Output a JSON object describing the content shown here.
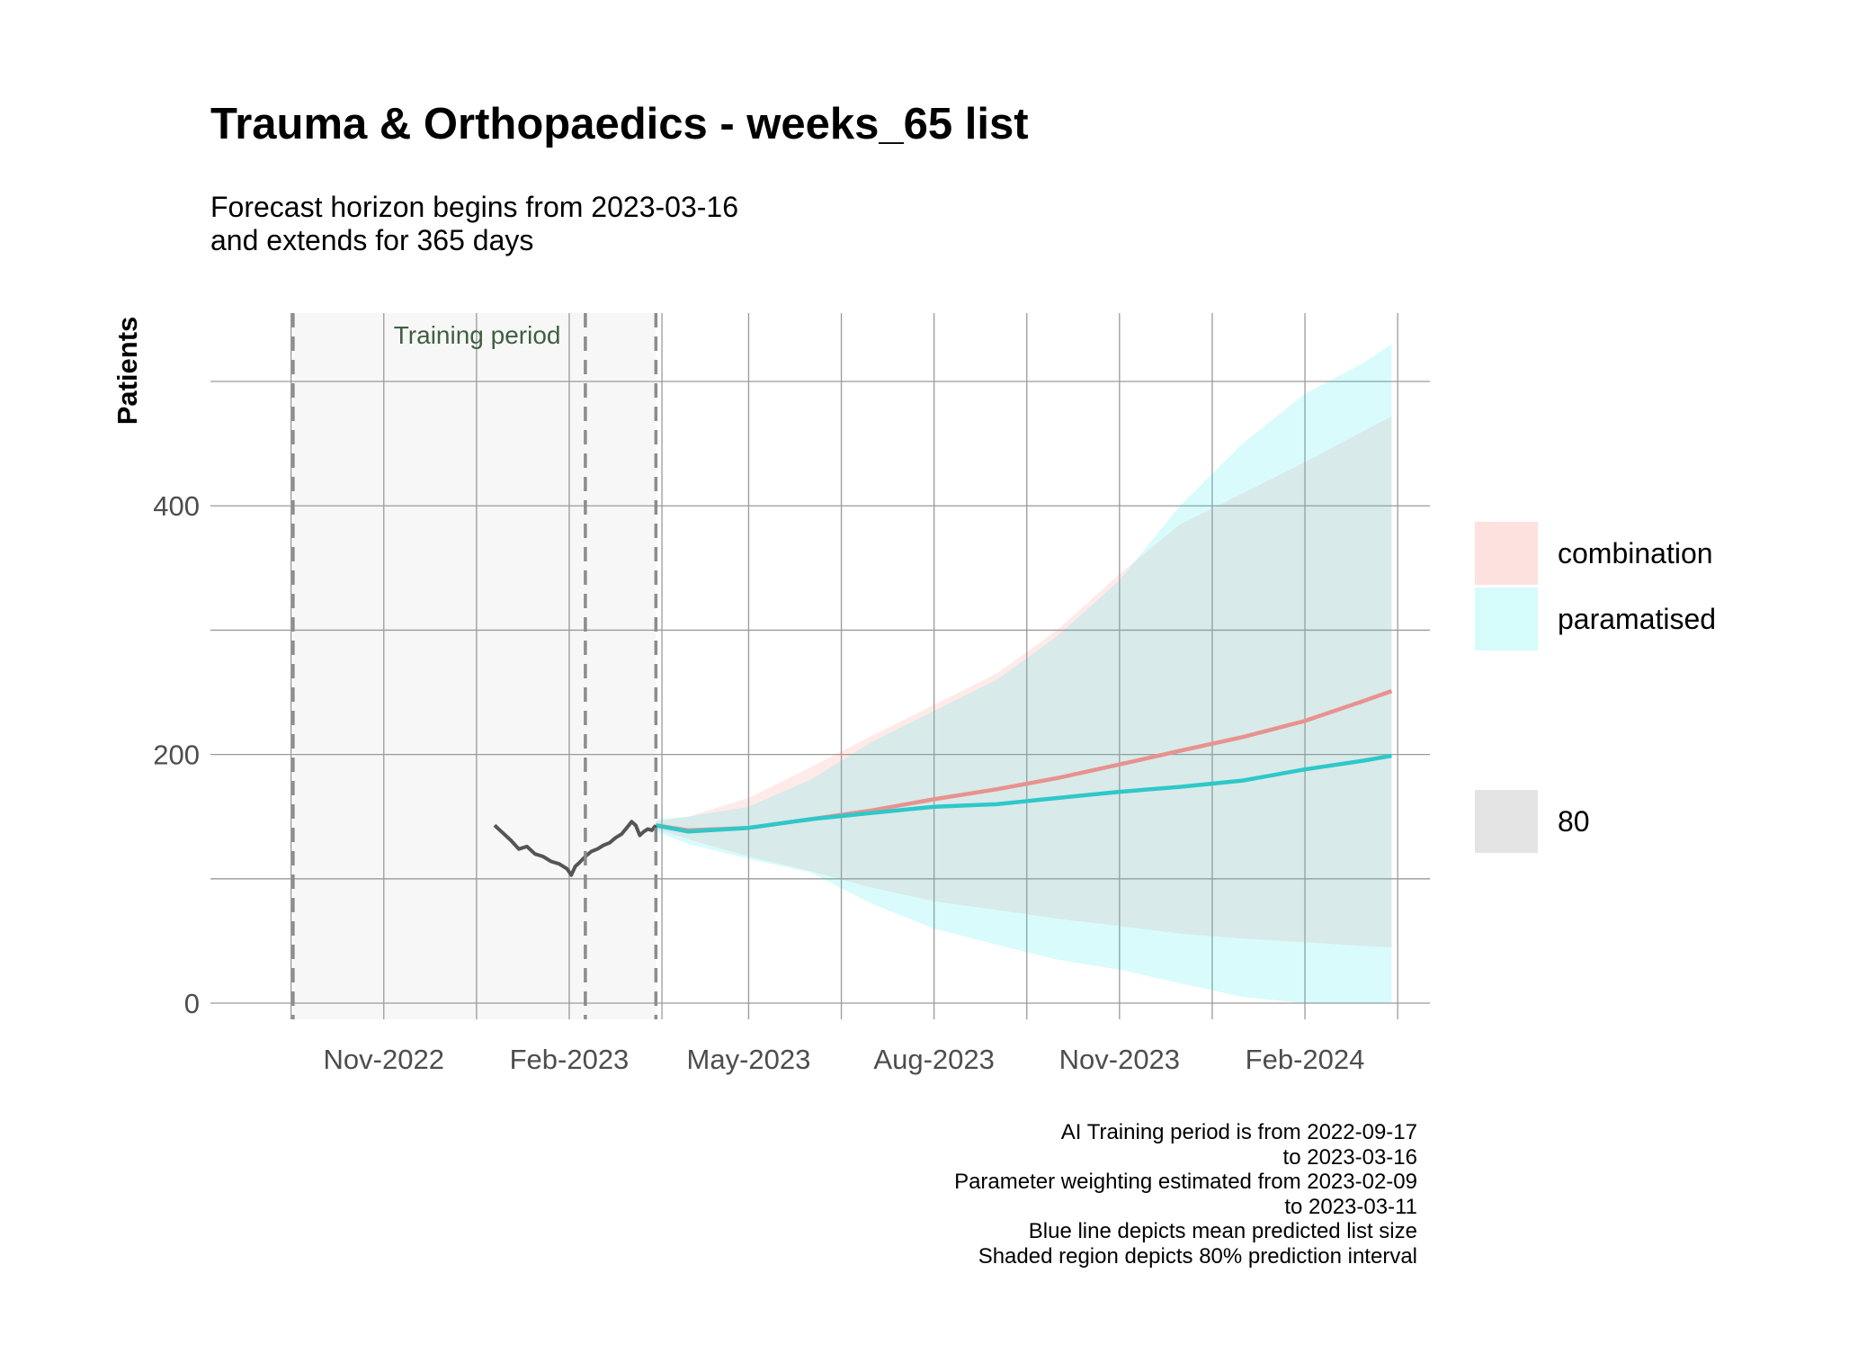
{
  "title": "Trauma & Orthopaedics - weeks_65 list",
  "subtitle": [
    "Forecast horizon begins from 2023-03-16",
    "and extends for 365 days"
  ],
  "caption": [
    "AI Training period is from 2022-09-17",
    "to 2023-03-16",
    "Parameter weighting estimated from 2023-02-09",
    "to 2023-03-11",
    "Blue line depicts mean predicted list size",
    "Shaded region depicts 80% prediction interval"
  ],
  "legend": {
    "series": [
      {
        "label": "combination",
        "color": "#F8766D"
      },
      {
        "label": "paramatised",
        "color": "#00E5E8"
      }
    ],
    "interval": {
      "label": "80",
      "color": "#d9d9d9"
    }
  },
  "colors": {
    "historic_line": "#555555",
    "combination_line": "#E8928F",
    "paramatised_line": "#2EC8C8",
    "training_shade": "#f7f7f7",
    "grid": "#9a9a9a",
    "vline": "#8c8c8c"
  },
  "chart_data": {
    "type": "line",
    "title": "Trauma & Orthopaedics - weeks_65 list",
    "ylabel": "Patients",
    "xlabel": "",
    "x_ticks": [
      "Nov-2022",
      "Feb-2023",
      "May-2023",
      "Aug-2023",
      "Nov-2023",
      "Feb-2024"
    ],
    "x_tick_dates": [
      "2022-11-01",
      "2023-02-01",
      "2023-05-01",
      "2023-08-01",
      "2023-11-01",
      "2024-02-01"
    ],
    "y_ticks": [
      0,
      200,
      400
    ],
    "y_tick_labels": [
      "0",
      "200",
      "400"
    ],
    "xlim": [
      "2022-08-07",
      "2024-04-03"
    ],
    "ylim": [
      -13,
      555
    ],
    "grid": true,
    "legend_position": "right",
    "annotation": "Training period",
    "training_period": [
      "2022-09-17",
      "2023-03-16"
    ],
    "reference_lines": [
      "2022-09-17",
      "2023-02-09",
      "2023-03-16"
    ],
    "historic": {
      "dates": [
        "2022-12-26",
        "2022-12-30",
        "2023-01-03",
        "2023-01-07",
        "2023-01-11",
        "2023-01-15",
        "2023-01-19",
        "2023-01-23",
        "2023-01-27",
        "2023-01-31",
        "2023-02-02",
        "2023-02-04",
        "2023-02-06",
        "2023-02-09",
        "2023-02-12",
        "2023-02-15",
        "2023-02-18",
        "2023-02-21",
        "2023-02-24",
        "2023-02-27",
        "2023-03-02",
        "2023-03-04",
        "2023-03-06",
        "2023-03-08",
        "2023-03-10",
        "2023-03-12",
        "2023-03-14",
        "2023-03-16"
      ],
      "values": [
        143,
        137,
        131,
        124,
        126,
        120,
        118,
        114,
        112,
        108,
        103,
        110,
        113,
        118,
        122,
        124,
        127,
        129,
        133,
        136,
        142,
        146,
        143,
        135,
        138,
        140,
        139,
        143
      ]
    },
    "series": [
      {
        "name": "combination",
        "dates": [
          "2023-03-16",
          "2023-04-01",
          "2023-05-01",
          "2023-06-01",
          "2023-07-01",
          "2023-08-01",
          "2023-09-01",
          "2023-10-01",
          "2023-11-01",
          "2023-12-01",
          "2024-01-01",
          "2024-02-01",
          "2024-03-01",
          "2024-03-15"
        ],
        "mean": [
          143,
          139,
          141,
          148,
          155,
          164,
          172,
          181,
          192,
          203,
          214,
          227,
          243,
          251
        ],
        "lower": [
          140,
          132,
          118,
          106,
          93,
          82,
          75,
          68,
          62,
          56,
          52,
          49,
          46,
          45
        ],
        "upper": [
          146,
          150,
          165,
          190,
          215,
          240,
          265,
          300,
          345,
          385,
          410,
          435,
          460,
          472
        ]
      },
      {
        "name": "paramatised",
        "dates": [
          "2023-03-16",
          "2023-04-01",
          "2023-05-01",
          "2023-06-01",
          "2023-07-01",
          "2023-08-01",
          "2023-09-01",
          "2023-10-01",
          "2023-11-01",
          "2023-12-01",
          "2024-01-01",
          "2024-02-01",
          "2024-03-01",
          "2024-03-15"
        ],
        "mean": [
          143,
          138,
          141,
          148,
          153,
          158,
          160,
          165,
          170,
          174,
          179,
          188,
          195,
          199
        ],
        "lower": [
          138,
          128,
          116,
          105,
          80,
          60,
          47,
          35,
          27,
          16,
          5,
          0,
          0,
          0
        ],
        "upper": [
          148,
          150,
          158,
          180,
          210,
          235,
          260,
          295,
          340,
          400,
          450,
          490,
          515,
          530
        ]
      }
    ]
  }
}
